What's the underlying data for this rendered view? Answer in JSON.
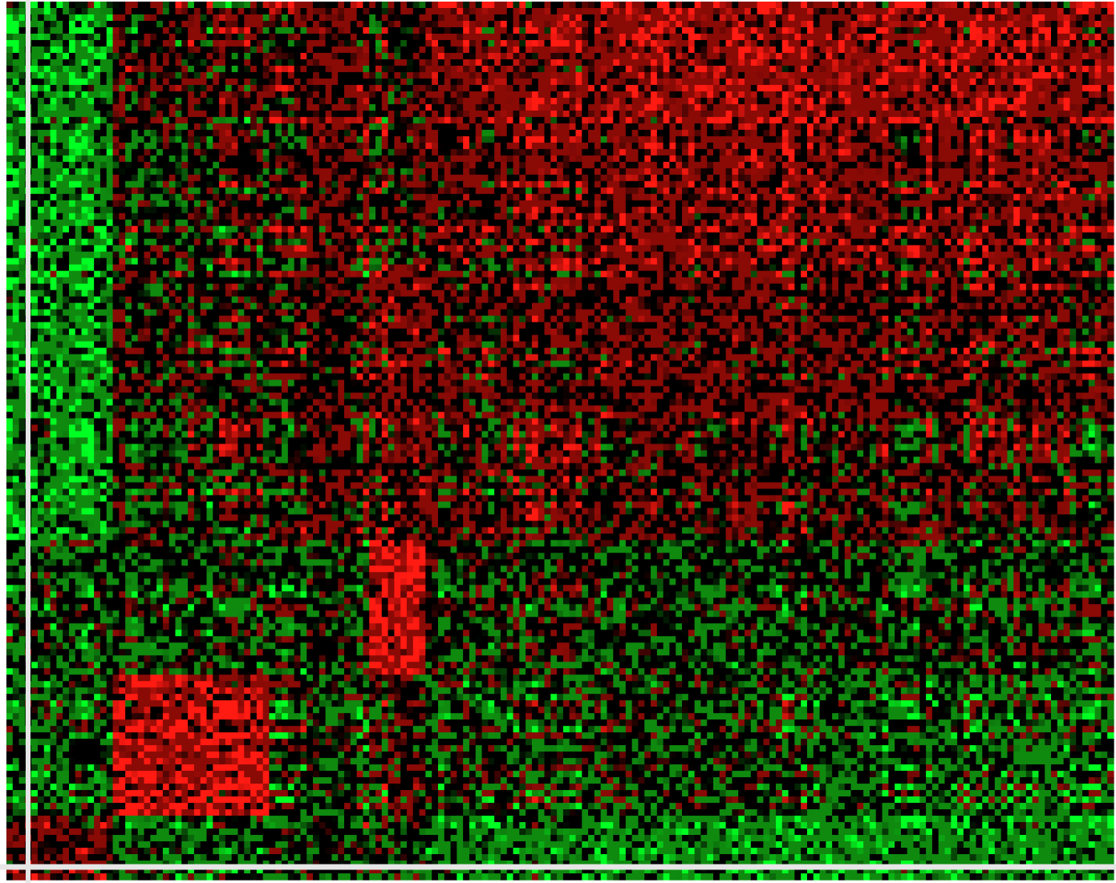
{
  "chart_data": {
    "type": "heatmap",
    "title": "",
    "xlabel": "",
    "ylabel": "",
    "rows": 137,
    "cols": 177,
    "color_scale": [
      "#00ff22",
      "#0f8a0f",
      "#000000",
      "#8a0a06",
      "#ff1a12"
    ],
    "value_range": [
      -2,
      2
    ],
    "block_boundaries": {
      "col_fractions": [
        0.095,
        0.235,
        0.325,
        0.378,
        0.53,
        0.73,
        1.0
      ],
      "row_fractions": [
        0.14,
        0.3,
        0.48,
        0.615,
        0.765,
        0.93,
        1.0
      ]
    },
    "block_tendency": [
      [
        -1.0,
        0.3,
        0.6,
        0.2,
        0.9,
        1.2,
        1.1
      ],
      [
        -1.0,
        0.0,
        0.5,
        0.2,
        0.6,
        0.9,
        0.8
      ],
      [
        -1.0,
        0.1,
        0.3,
        0.8,
        0.4,
        0.6,
        0.5
      ],
      [
        -1.0,
        0.0,
        0.4,
        0.5,
        0.4,
        0.3,
        0.2
      ],
      [
        -0.4,
        -0.3,
        -0.2,
        1.6,
        -0.1,
        -0.3,
        -0.2
      ],
      [
        -0.5,
        1.4,
        -0.2,
        0.2,
        -0.3,
        -0.2,
        -0.5
      ],
      [
        0.6,
        -0.6,
        -0.2,
        -0.1,
        -0.8,
        -1.0,
        -1.0
      ]
    ],
    "seed": 1911,
    "grid": false,
    "legend": "none",
    "overlay": {
      "vertical_rule_color": "#e6e6e6",
      "horizontal_rule_color": "#e6e6e6"
    }
  }
}
